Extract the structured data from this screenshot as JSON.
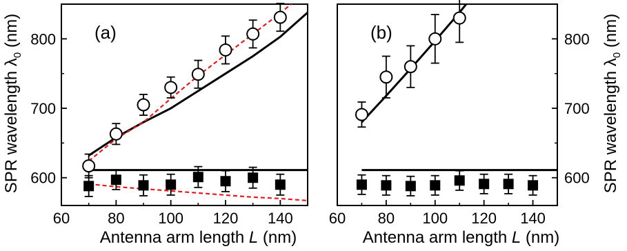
{
  "chart_data": [
    {
      "type": "scatter",
      "panel_label": "(a)",
      "xlabel": "Antenna arm length",
      "xlabel_var": "L",
      "xlabel_unit": "(nm)",
      "ylabel": "SPR wavelength λ",
      "ylabel_sub": "0",
      "ylabel_unit": "(nm)",
      "ylabel_side": "left",
      "xlim": [
        60,
        150
      ],
      "ylim": [
        560,
        850
      ],
      "xticks": [
        60,
        80,
        100,
        120,
        140
      ],
      "yticks": [
        600,
        700,
        800
      ],
      "series": [
        {
          "marker": "open-circle",
          "x": [
            70,
            80,
            90,
            100,
            110,
            120,
            130,
            140
          ],
          "y": [
            617,
            663,
            705,
            730,
            749,
            784,
            807,
            831
          ],
          "err": [
            17,
            15,
            15,
            15,
            20,
            20,
            20,
            20
          ]
        },
        {
          "marker": "filled-square",
          "x": [
            70,
            80,
            90,
            100,
            110,
            120,
            130,
            140
          ],
          "y": [
            588,
            597,
            589,
            590,
            601,
            595,
            600,
            590
          ],
          "err": [
            15,
            14,
            15,
            15,
            15,
            15,
            15,
            15
          ]
        },
        {
          "line": "solid",
          "color": "#000000",
          "x": [
            70,
            80,
            90,
            100,
            110,
            120,
            130,
            140,
            150
          ],
          "y": [
            632,
            658,
            680,
            700,
            725,
            750,
            775,
            803,
            838
          ]
        },
        {
          "line": "solid",
          "color": "#000000",
          "x": [
            70,
            150
          ],
          "y": [
            611,
            611
          ]
        },
        {
          "line": "dashed",
          "color": "#e8191c",
          "x": [
            70,
            80,
            90,
            100,
            110,
            120,
            130,
            140,
            147
          ],
          "y": [
            624,
            656,
            680,
            714,
            747,
            777,
            807,
            837,
            860
          ]
        },
        {
          "line": "dashed",
          "color": "#e8191c",
          "x": [
            70,
            80,
            90,
            100,
            110,
            120,
            130,
            140,
            150
          ],
          "y": [
            591,
            587,
            584,
            581,
            578,
            575,
            572,
            570,
            567
          ]
        }
      ]
    },
    {
      "type": "scatter",
      "panel_label": "(b)",
      "xlabel": "Antenna arm length",
      "xlabel_var": "L",
      "xlabel_unit": "(nm)",
      "ylabel": "SPR wavelength λ",
      "ylabel_sub": "0",
      "ylabel_unit": "(nm)",
      "ylabel_side": "right",
      "xlim": [
        60,
        150
      ],
      "ylim": [
        560,
        850
      ],
      "xticks": [
        60,
        80,
        100,
        120,
        140
      ],
      "yticks": [
        600,
        700,
        800
      ],
      "series": [
        {
          "marker": "open-circle",
          "x": [
            70,
            80,
            90,
            100,
            110
          ],
          "y": [
            691,
            745,
            760,
            800,
            830
          ],
          "err": [
            18,
            30,
            30,
            35,
            35
          ]
        },
        {
          "marker": "filled-square",
          "x": [
            70,
            80,
            90,
            100,
            110,
            120,
            130,
            140
          ],
          "y": [
            590,
            589,
            588,
            589,
            596,
            591,
            591,
            589
          ],
          "err": [
            14,
            14,
            14,
            14,
            14,
            14,
            14,
            14
          ]
        },
        {
          "line": "solid",
          "color": "#000000",
          "x": [
            70,
            80,
            90,
            100,
            110,
            115
          ],
          "y": [
            680,
            718,
            757,
            797,
            838,
            860
          ]
        },
        {
          "line": "solid",
          "color": "#000000",
          "x": [
            70,
            150
          ],
          "y": [
            611,
            611
          ]
        }
      ]
    }
  ]
}
